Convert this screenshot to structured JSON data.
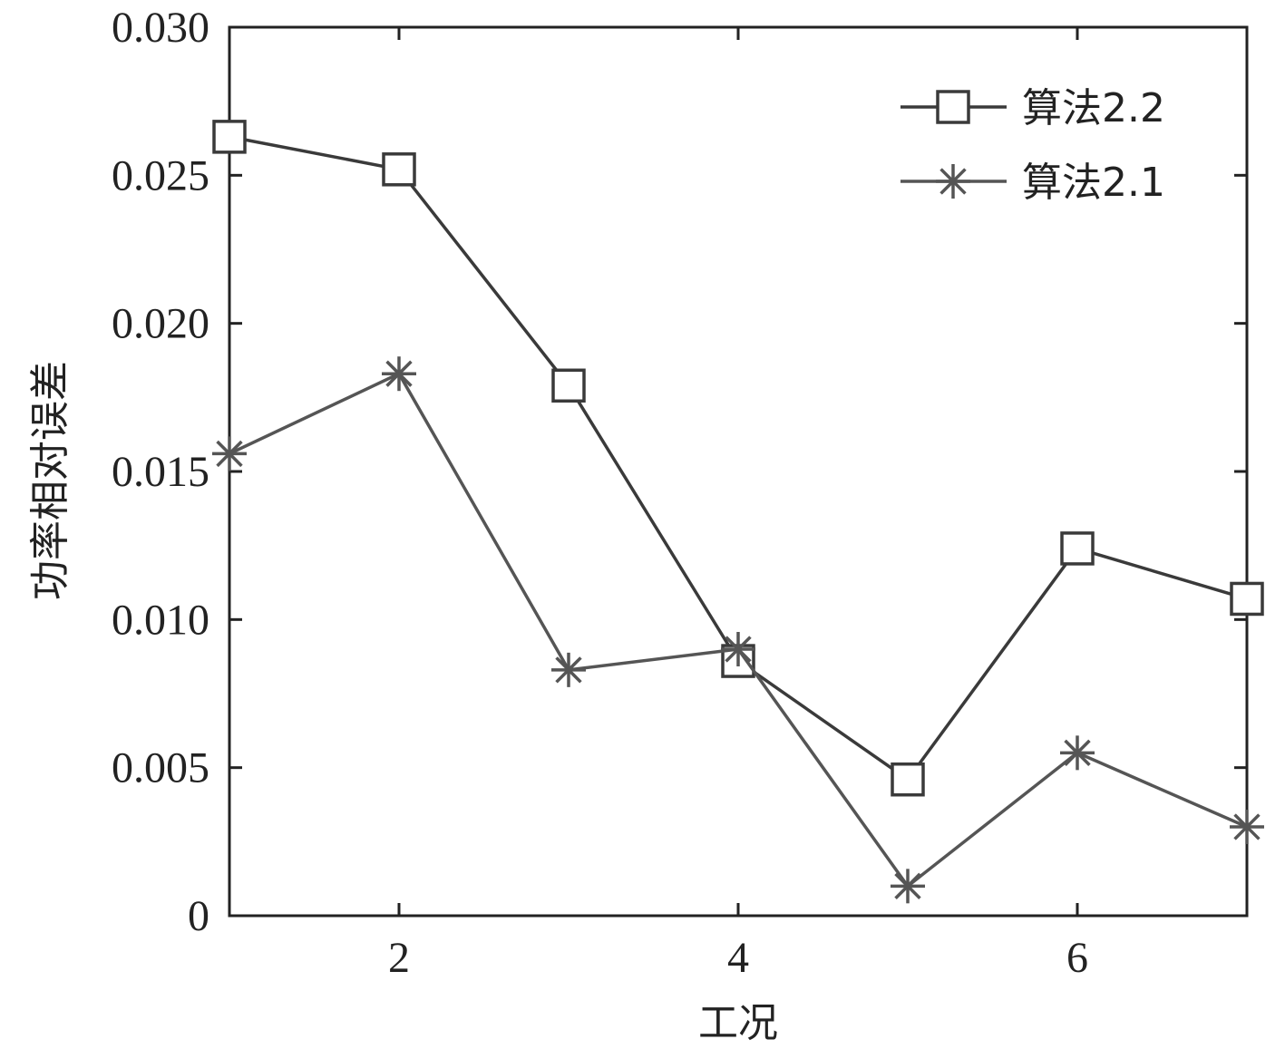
{
  "chart_data": {
    "type": "line",
    "title": "",
    "xlabel": "工况",
    "ylabel": "功率相对误差",
    "x": [
      1,
      2,
      3,
      4,
      5,
      6,
      7
    ],
    "xlim": [
      1,
      7
    ],
    "ylim": [
      0,
      0.03
    ],
    "xticks": [
      2,
      4,
      6
    ],
    "xtick_labels": [
      "2",
      "4",
      "6"
    ],
    "yticks": [
      0,
      0.005,
      0.01,
      0.015,
      0.02,
      0.025,
      0.03
    ],
    "ytick_labels": [
      "0",
      "0.005",
      "0.010",
      "0.015",
      "0.020",
      "0.025",
      "0.030"
    ],
    "grid": false,
    "legend_position": "top-right",
    "series": [
      {
        "name": "算法2.2",
        "marker": "square",
        "color": "#3a3a3a",
        "values": [
          0.0263,
          0.0252,
          0.0179,
          0.0086,
          0.0046,
          0.0124,
          0.0107
        ]
      },
      {
        "name": "算法2.1",
        "marker": "asterisk",
        "color": "#555555",
        "values": [
          0.0156,
          0.0183,
          0.0083,
          0.009,
          0.001,
          0.0055,
          0.003
        ]
      }
    ]
  }
}
